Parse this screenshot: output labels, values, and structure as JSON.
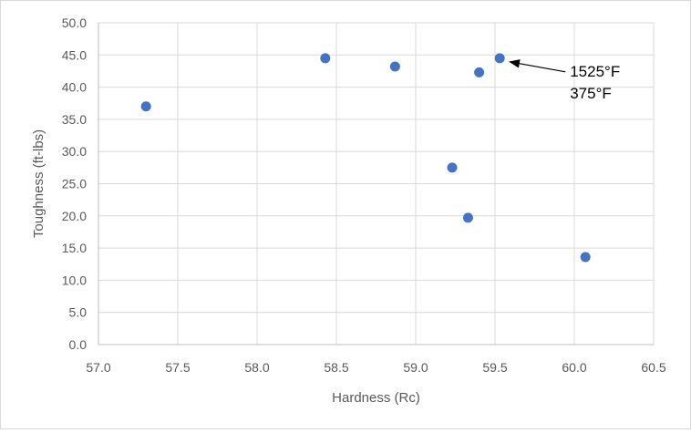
{
  "chart_data": {
    "type": "scatter",
    "title": "",
    "xlabel": "Hardness (Rc)",
    "ylabel": "Toughness (ft-lbs)",
    "xlim": [
      57.0,
      60.5
    ],
    "ylim": [
      0.0,
      50.0
    ],
    "x_ticks": [
      "57.0",
      "57.5",
      "58.0",
      "58.5",
      "59.0",
      "59.5",
      "60.0",
      "60.5"
    ],
    "y_ticks": [
      "0.0",
      "5.0",
      "10.0",
      "15.0",
      "20.0",
      "25.0",
      "30.0",
      "35.0",
      "40.0",
      "45.0",
      "50.0"
    ],
    "grid": true,
    "legend": "none",
    "marker_color": "#4472C4",
    "points": [
      {
        "x": 57.3,
        "y": 37.0
      },
      {
        "x": 58.43,
        "y": 44.5
      },
      {
        "x": 58.87,
        "y": 43.2
      },
      {
        "x": 59.23,
        "y": 27.5
      },
      {
        "x": 59.33,
        "y": 19.7
      },
      {
        "x": 59.4,
        "y": 42.3
      },
      {
        "x": 59.53,
        "y": 44.5
      },
      {
        "x": 60.07,
        "y": 13.6
      }
    ],
    "annotations": [
      {
        "text_lines": [
          "1525°F",
          "375°F"
        ],
        "points_to": {
          "x": 59.53,
          "y": 44.5
        }
      }
    ]
  }
}
